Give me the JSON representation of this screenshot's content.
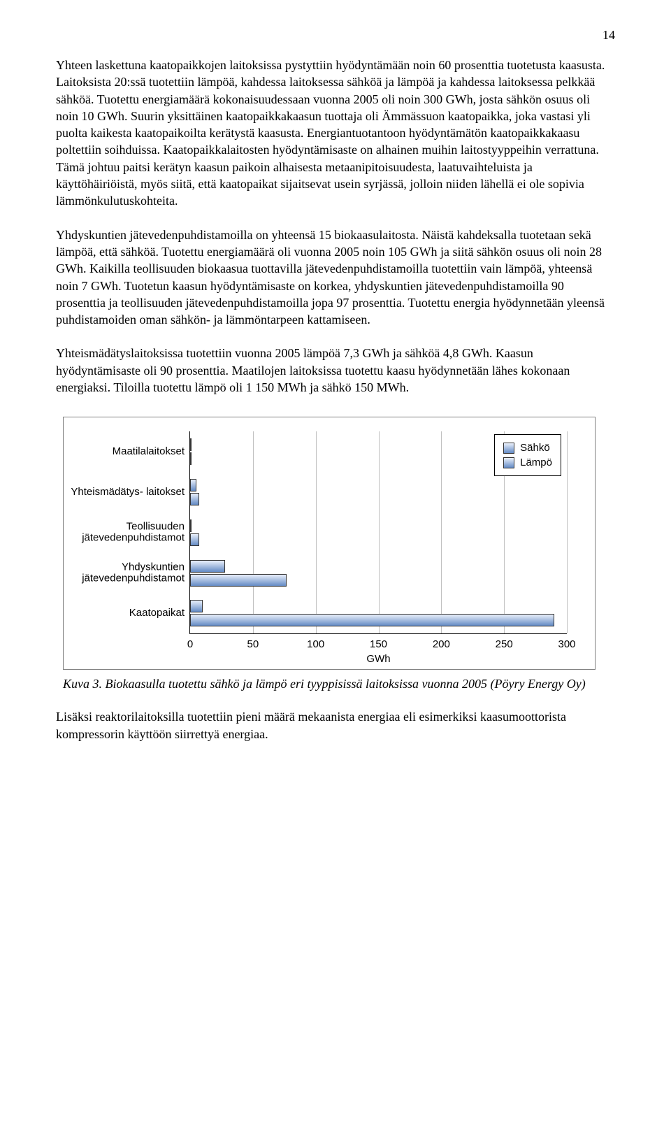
{
  "page_number": "14",
  "paragraphs": {
    "p1": "Yhteen laskettuna kaatopaikkojen laitoksissa pystyttiin hyödyntämään noin 60 prosenttia tuotetusta kaasusta. Laitoksista 20:ssä tuotettiin lämpöä, kahdessa laitoksessa sähköä ja lämpöä ja kahdessa laitoksessa pelkkää sähköä. Tuotettu energiamäärä kokonaisuudessaan vuonna 2005 oli noin 300 GWh, josta sähkön osuus oli noin 10 GWh. Suurin yksittäinen kaatopaikkakaasun tuottaja oli Ämmässuon kaatopaikka, joka vastasi yli puolta kaikesta kaatopaikoilta kerätystä kaasusta. Energiantuotantoon hyödyntämätön kaatopaikkakaasu poltettiin soihduissa. Kaatopaikkalaitosten hyödyntämisaste on alhainen muihin laitostyyppeihin verrattuna. Tämä johtuu paitsi kerätyn kaasun paikoin alhaisesta metaanipitoisuudesta, laatuvaihteluista ja käyttöhäiriöistä, myös siitä, että kaatopaikat sijaitsevat usein syrjässä, jolloin niiden lähellä ei ole sopivia lämmönkulutuskohteita.",
    "p2": "Yhdyskuntien jätevedenpuhdistamoilla on yhteensä 15 biokaasulaitosta. Näistä kahdeksalla tuotetaan sekä lämpöä, että sähköä. Tuotettu energiamäärä oli vuonna 2005 noin 105 GWh ja siitä sähkön osuus oli noin 28 GWh. Kaikilla teollisuuden biokaasua tuottavilla jätevedenpuhdistamoilla tuotettiin vain lämpöä, yhteensä noin 7 GWh. Tuotetun kaasun hyödyntämisaste on korkea, yhdyskuntien jätevedenpuhdistamoilla 90 prosenttia ja teollisuuden jätevedenpuhdistamoilla jopa 97 prosenttia. Tuotettu energia hyödynnetään yleensä puhdistamoiden oman sähkön- ja lämmöntarpeen kattamiseen.",
    "p3": "Yhteismädätyslaitoksissa tuotettiin vuonna 2005 lämpöä 7,3 GWh ja sähköä 4,8 GWh. Kaasun hyödyntämisaste oli 90 prosenttia. Maatilojen laitoksissa tuotettu kaasu hyödynnetään lähes kokonaan energiaksi. Tiloilla tuotettu lämpö oli 1 150 MWh ja sähkö 150 MWh.",
    "p4": "Lisäksi reaktorilaitoksilla tuotettiin pieni määrä mekaanista energiaa eli esimerkiksi kaasumoottorista kompressorin käyttöön siirrettyä energiaa."
  },
  "chart": {
    "type": "bar",
    "orientation": "horizontal",
    "categories": [
      "Maatilalaitokset",
      "Yhteismädätys- laitokset",
      "Teollisuuden jätevedenpuhdistamot",
      "Yhdyskuntien jätevedenpuhdistamot",
      "Kaatopaikat"
    ],
    "series": [
      {
        "name": "Sähkö",
        "color_top": "#eaf0fb",
        "color_bottom": "#638ac4",
        "values": [
          0.15,
          4.8,
          0,
          28,
          10
        ]
      },
      {
        "name": "Lämpö",
        "color_top": "#eaf0fb",
        "color_bottom": "#638ac4",
        "values": [
          1.15,
          7.3,
          7,
          77,
          290
        ]
      }
    ],
    "xlim": [
      0,
      300
    ],
    "xtick_step": 50,
    "xticks": [
      "0",
      "50",
      "100",
      "150",
      "200",
      "250",
      "300"
    ],
    "xlabel": "GWh",
    "background_color": "#ffffff",
    "grid_color": "#c0c0c0",
    "border_color": "#808080",
    "bar_border": "#333333",
    "font_family": "Arial",
    "legend_position": "top-right",
    "legend_border": "#000000"
  },
  "caption": "Kuva 3. Biokaasulla tuotettu sähkö ja lämpö eri tyyppisissä laitoksissa vuonna 2005 (Pöyry Energy Oy)",
  "legend": {
    "items": [
      "Sähkö",
      "Lämpö"
    ]
  }
}
